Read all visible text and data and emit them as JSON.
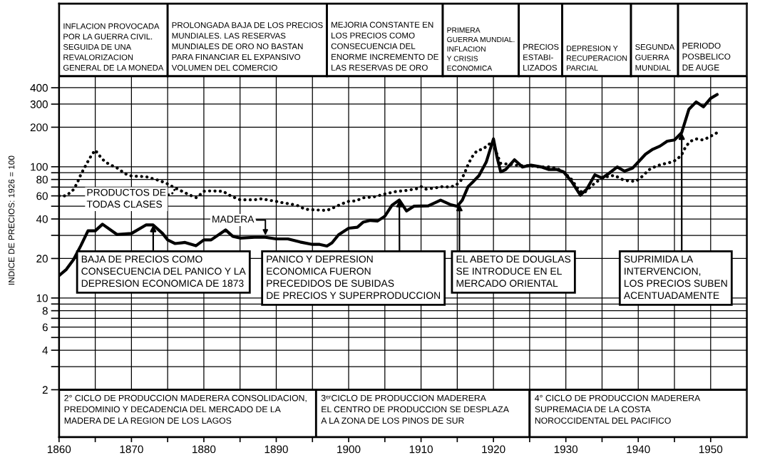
{
  "chart_data": {
    "type": "line",
    "ylabel": "INDICE DE PRECIOS: 1926 = 100",
    "xlim": [
      1860,
      1955
    ],
    "xticks": [
      1860,
      {
        "value": 1865,
        "label": null
      },
      1870,
      {
        "value": 1875,
        "label": null
      },
      1880,
      {
        "value": 1885,
        "label": null
      },
      1890,
      {
        "value": 1895,
        "label": null
      },
      1900,
      {
        "value": 1905,
        "label": null
      },
      1910,
      {
        "value": 1915,
        "label": null
      },
      1920,
      {
        "value": 1925,
        "label": null
      },
      1930,
      {
        "value": 1935,
        "label": null
      },
      1940,
      {
        "value": 1945,
        "label": null
      },
      1950
    ],
    "ylim": [
      0.87,
      1750
    ],
    "yticks": [
      2,
      {
        "value": 3,
        "label": null
      },
      4,
      {
        "value": 5,
        "label": null
      },
      6,
      {
        "value": 7,
        "label": null
      },
      8,
      {
        "value": 9,
        "label": null
      },
      10,
      20,
      {
        "value": 30,
        "label": null
      },
      40,
      {
        "value": 50,
        "label": null
      },
      60,
      {
        "value": 70,
        "label": null
      },
      80,
      {
        "value": 90,
        "label": null
      },
      100,
      200,
      300,
      400
    ],
    "log": true,
    "grid": true,
    "series": [
      {
        "name": "PRODUCTOS DE\nTODAS CLASES",
        "color": "#000000",
        "line_style": "dotted",
        "x": [
          1860,
          1861,
          1862,
          1862.5,
          1863,
          1863.5,
          1864,
          1864.5,
          1865,
          1865.5,
          1866,
          1866.5,
          1867,
          1868,
          1868.5,
          1869,
          1870,
          1871,
          1872,
          1873,
          1874,
          1875,
          1876,
          1877,
          1878,
          1879,
          1880,
          1881,
          1882.7,
          1883.2,
          1884,
          1885,
          1887,
          1888,
          1889,
          1890,
          1891,
          1892,
          1893,
          1894,
          1895,
          1897,
          1898,
          1899,
          1900,
          1901,
          1902,
          1903.5,
          1905,
          1906.5,
          1908,
          1909.4,
          1910,
          1910.7,
          1912,
          1913,
          1914,
          1914.8,
          1915.5,
          1916,
          1916.5,
          1917,
          1917.7,
          1918.6,
          1919.3,
          1919.8,
          1921,
          1922.4,
          1923.5,
          1925,
          1926,
          1927.6,
          1928.7,
          1929.7,
          1930.8,
          1931.8,
          1932.5,
          1933.6,
          1934.7,
          1935.7,
          1936.7,
          1937.8,
          1938.8,
          1939.7,
          1940.5,
          1941.5,
          1942.6,
          1943.8,
          1944.6,
          1945.3,
          1946,
          1946.6,
          1947.3,
          1948,
          1948.9,
          1949.7,
          1950.9
        ],
        "values": [
          60,
          60,
          67,
          75,
          87,
          98,
          110,
          123,
          134,
          123,
          114,
          108,
          104,
          98,
          94,
          89,
          85,
          84.5,
          84,
          81,
          78,
          74,
          69,
          65,
          61,
          58,
          65,
          65.5,
          65,
          62,
          59,
          56,
          56,
          57,
          55.6,
          54.5,
          53,
          52,
          50.5,
          47.5,
          47,
          46.5,
          49,
          52,
          54.5,
          55,
          58,
          59,
          62,
          64.7,
          66,
          68,
          70.6,
          67.5,
          69,
          70.6,
          70,
          72,
          78.6,
          89,
          104,
          118,
          132,
          137,
          147,
          155,
          106,
          104,
          102,
          102,
          100,
          99.6,
          97.5,
          91,
          80,
          66,
          63,
          72,
          80,
          84,
          86,
          80,
          77.6,
          77.6,
          84,
          95,
          102,
          106,
          108.5,
          113,
          123.5,
          144,
          157,
          163,
          160,
          167,
          182
        ]
      },
      {
        "name": "MADERA",
        "color": "#000000",
        "line_style": "solid",
        "x": [
          1860,
          1861,
          1862,
          1863,
          1864,
          1865,
          1866,
          1868,
          1870,
          1872,
          1873,
          1874.3,
          1875,
          1876,
          1877.4,
          1878.9,
          1880,
          1881,
          1883,
          1884,
          1885,
          1887,
          1888.5,
          1890,
          1891.6,
          1893.3,
          1895,
          1896,
          1897,
          1897.7,
          1898.6,
          1900,
          1901.2,
          1902,
          1903,
          1904,
          1905,
          1906,
          1907,
          1908,
          1909,
          1911,
          1912.7,
          1914,
          1915,
          1915.7,
          1916.5,
          1917.2,
          1918,
          1919,
          1920,
          1920.5,
          1921,
          1921.7,
          1922.9,
          1924,
          1925.2,
          1926.6,
          1927.6,
          1928.7,
          1929.7,
          1930.8,
          1932,
          1932.9,
          1934,
          1935,
          1936,
          1937.1,
          1938.1,
          1939.2,
          1940,
          1941,
          1942,
          1943,
          1944,
          1945,
          1946,
          1947,
          1948,
          1949,
          1950,
          1950.9
        ],
        "values": [
          14.8,
          16.5,
          19.6,
          25,
          32.5,
          32.5,
          36.5,
          30.5,
          31,
          36,
          36,
          31,
          27.7,
          26,
          26.5,
          25,
          27.7,
          27.7,
          33,
          29.5,
          28.6,
          29,
          29,
          28.2,
          28.2,
          26.7,
          25.6,
          25.6,
          24.9,
          26.3,
          30.3,
          34,
          34.6,
          37.8,
          39,
          38.6,
          42,
          51,
          55.7,
          46,
          50,
          50.4,
          55.7,
          51.6,
          50,
          55.7,
          70.6,
          77,
          85.6,
          108.5,
          163,
          118,
          91.3,
          95.4,
          113,
          99.6,
          103,
          99.6,
          95.4,
          95.4,
          91.3,
          77,
          60.7,
          67.6,
          86.7,
          82,
          89.4,
          99.6,
          92.5,
          97.5,
          108.5,
          124.6,
          135.8,
          143.6,
          156.6,
          160,
          182,
          274,
          312,
          286,
          332,
          355
        ]
      }
    ],
    "bands": [
      {
        "axis": "x",
        "from": 1860,
        "to": 1875,
        "label": "INFLACION PROVOCADA\nPOR LA GUERRA CIVIL.\nSEGUIDA DE UNA\nREVALORIZACION\nGENERAL DE LA MONEDA"
      },
      {
        "axis": "x",
        "from": 1875,
        "to": 1897,
        "label": "PROLONGADA BAJA DE LOS PRECIOS\nMUNDIALES. LAS RESERVAS\nMUNDIALES DE ORO NO BASTAN\nPARA FINANCIAR EL EXPANSIVO\nVOLUMEN DEL COMERCIO"
      },
      {
        "axis": "x",
        "from": 1897,
        "to": 1913,
        "label": "MEJORIA CONSTANTE EN\nLOS PRECIOS COMO\nCONSECUENCIA DEL\nENORME INCREMENTO DE\nLAS RESERVAS DE ORO"
      },
      {
        "axis": "x",
        "from": 1913,
        "to": 1923.5,
        "label": "PRIMERA\nGUERRA MUNDIAL.\nINFLACION\nY CRISIS\nECONOMICA"
      },
      {
        "axis": "x",
        "from": 1923.5,
        "to": 1929.5,
        "label": "PRECIOS\nESTABI-\nLIZADOS"
      },
      {
        "axis": "x",
        "from": 1929.5,
        "to": 1939,
        "label": "DEPRESION Y\nRECUPERACION\nPARCIAL"
      },
      {
        "axis": "x",
        "from": 1939,
        "to": 1945.5,
        "label": "SEGUNDA\nGUERRA\nMUNDIAL"
      },
      {
        "axis": "x",
        "from": 1945.5,
        "to": 1955,
        "label": "PERIODO\nPOSBELICO\nDE AUGE"
      },
      {
        "axis": "x",
        "from": 1860,
        "to": 1895.5,
        "label": "2° CICLO DE PRODUCCION MADERERA CONSOLIDACION,\nPREDOMINIO Y DECADENCIA DEL MERCADO DE LA\nMADERA DE LA REGION DE LOS LAGOS"
      },
      {
        "axis": "x",
        "from": 1895.5,
        "to": 1925,
        "label": "3ᵉʳCICLO DE PRODUCCION MADERERA\nEL CENTRO DE PRODUCCION SE DESPLAZA\nA LA ZONA DE LOS PINOS DE SUR"
      },
      {
        "axis": "x",
        "from": 1925,
        "to": 1955,
        "label": "4° CICLO DE PRODUCCION MADERERA\nSUPREMACIA DE LA COSTA\nNOROCCIDENTAL DEL PACIFICO"
      }
    ],
    "annotations": [
      {
        "text": "BAJA DE PRECIOS COMO\nCONSECUENCIA DEL PANICO Y LA\nDEPRESION ECONOMICA DE 1873",
        "x": 1873,
        "y": 36
      },
      {
        "text": "PANICO Y DEPRESION\nECONOMICA FUERON\nPRECEDIDOS DE SUBIDAS\nDE PRECIOS Y SUPERPRODUCCION",
        "x": 1907,
        "y": 55.7
      },
      {
        "text": "EL ABETO DE DOUGLAS\nSE INTRODUCE EN EL\nMERCADO ORIENTAL",
        "x": 1915.3,
        "y": 52
      },
      {
        "text": "SUPRIMIDA LA\nINTERVENCION,\nLOS PRECIOS SUBEN\nACENTUADAMENTE",
        "x": 1946,
        "y": 182
      }
    ]
  }
}
